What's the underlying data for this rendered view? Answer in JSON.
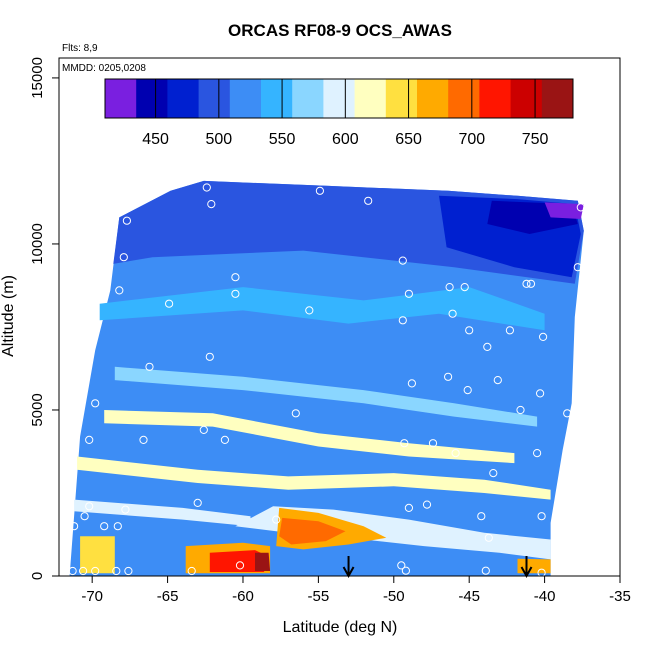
{
  "chart_data": {
    "type": "heatmap",
    "title": "ORCAS RF08-9 OCS_AWAS",
    "annotations": [
      "Flts: 8,9",
      "MMDD: 0205,0208"
    ],
    "xlabel": "Latitude (deg N)",
    "ylabel": "Altitude (m)",
    "xlim": [
      -72.2,
      -35
    ],
    "ylim": [
      0,
      15600
    ],
    "xticks": [
      -70,
      -65,
      -60,
      -55,
      -50,
      -45,
      -40,
      -35
    ],
    "xtick_labels": [
      "-70",
      "-65",
      "-60",
      "-55",
      "-50",
      "-45",
      "-40",
      "-35"
    ],
    "yticks": [
      0,
      5000,
      10000,
      15000
    ],
    "ytick_labels": [
      "0",
      "5000",
      "10000",
      "15000"
    ],
    "colorbar": {
      "range": [
        410,
        780
      ],
      "ticks": [
        450,
        500,
        550,
        600,
        650,
        700,
        750
      ],
      "tick_labels": [
        "450",
        "500",
        "550",
        "600",
        "650",
        "700",
        "750"
      ],
      "colors": [
        "#7a1fe0",
        "#0000b0",
        "#0020d0",
        "#2a55e0",
        "#3d8df5",
        "#35b4ff",
        "#8ad6ff",
        "#dff2ff",
        "#ffffc0",
        "#ffe040",
        "#ffaa00",
        "#ff6a00",
        "#ff1500",
        "#cc0000",
        "#9a1414"
      ]
    },
    "domain_outline": [
      [
        -71.5,
        0
      ],
      [
        -70.8,
        4200
      ],
      [
        -69.8,
        6800
      ],
      [
        -68.8,
        8600
      ],
      [
        -68.2,
        10800
      ],
      [
        -64.8,
        11600
      ],
      [
        -62.6,
        11900
      ],
      [
        -54.5,
        11750
      ],
      [
        -46.4,
        11600
      ],
      [
        -41.8,
        11450
      ],
      [
        -37.8,
        11300
      ],
      [
        -37.4,
        10400
      ],
      [
        -38.0,
        7800
      ],
      [
        -38.2,
        5200
      ],
      [
        -38.8,
        3800
      ],
      [
        -39.6,
        1600
      ],
      [
        -39.6,
        0
      ]
    ],
    "regions": [
      {
        "value": 530,
        "poly": [
          [
            -71.5,
            0
          ],
          [
            -70.8,
            4200
          ],
          [
            -69.8,
            6800
          ],
          [
            -68.8,
            8600
          ],
          [
            -68.2,
            10800
          ],
          [
            -64.8,
            11600
          ],
          [
            -62.6,
            11900
          ],
          [
            -54.5,
            11750
          ],
          [
            -46.4,
            11600
          ],
          [
            -41.8,
            11450
          ],
          [
            -37.8,
            11300
          ],
          [
            -37.4,
            10400
          ],
          [
            -38.0,
            7800
          ],
          [
            -38.2,
            5200
          ],
          [
            -38.8,
            3800
          ],
          [
            -39.6,
            1600
          ],
          [
            -39.6,
            0
          ]
        ]
      },
      {
        "value": 495,
        "poly": [
          [
            -68.2,
            10800
          ],
          [
            -64.8,
            11600
          ],
          [
            -62.6,
            11900
          ],
          [
            -54.5,
            11750
          ],
          [
            -46.4,
            11600
          ],
          [
            -41.8,
            11450
          ],
          [
            -37.8,
            11300
          ],
          [
            -37.4,
            10400
          ],
          [
            -38.0,
            8800
          ],
          [
            -46,
            9300
          ],
          [
            -56,
            9800
          ],
          [
            -66,
            9600
          ],
          [
            -68.6,
            9400
          ]
        ]
      },
      {
        "value": 470,
        "poly": [
          [
            -47.0,
            11450
          ],
          [
            -41.8,
            11350
          ],
          [
            -38.0,
            11200
          ],
          [
            -37.6,
            10300
          ],
          [
            -38.2,
            9000
          ],
          [
            -42,
            9300
          ],
          [
            -46.5,
            9900
          ]
        ]
      },
      {
        "value": 440,
        "poly": [
          [
            -43.5,
            11300
          ],
          [
            -38.2,
            11200
          ],
          [
            -37.8,
            10600
          ],
          [
            -41,
            10300
          ],
          [
            -43.8,
            10600
          ]
        ]
      },
      {
        "value": 420,
        "poly": [
          [
            -40.0,
            11250
          ],
          [
            -37.4,
            11200
          ],
          [
            -37.6,
            10750
          ],
          [
            -39.6,
            10800
          ]
        ]
      },
      {
        "value": 555,
        "poly": [
          [
            -69.5,
            8200
          ],
          [
            -60,
            8700
          ],
          [
            -52,
            8300
          ],
          [
            -45,
            8700
          ],
          [
            -40,
            7900
          ],
          [
            -40,
            7400
          ],
          [
            -47,
            7900
          ],
          [
            -53,
            7600
          ],
          [
            -60,
            8000
          ],
          [
            -69.5,
            7700
          ]
        ]
      },
      {
        "value": 575,
        "poly": [
          [
            -68.5,
            6300
          ],
          [
            -60,
            6000
          ],
          [
            -52,
            5600
          ],
          [
            -46,
            5200
          ],
          [
            -40.5,
            4800
          ],
          [
            -40.5,
            4500
          ],
          [
            -46,
            4800
          ],
          [
            -52,
            5200
          ],
          [
            -60,
            5600
          ],
          [
            -68.5,
            5900
          ]
        ]
      },
      {
        "value": 610,
        "poly": [
          [
            -69.2,
            5000
          ],
          [
            -62,
            4900
          ],
          [
            -55,
            4300
          ],
          [
            -49,
            4000
          ],
          [
            -42,
            3700
          ],
          [
            -42,
            3400
          ],
          [
            -49,
            3600
          ],
          [
            -55,
            3900
          ],
          [
            -62,
            4500
          ],
          [
            -69.2,
            4600
          ]
        ]
      },
      {
        "value": 620,
        "poly": [
          [
            -71,
            3600
          ],
          [
            -63,
            3200
          ],
          [
            -57,
            3000
          ],
          [
            -50,
            3100
          ],
          [
            -44,
            2900
          ],
          [
            -39.6,
            2600
          ],
          [
            -39.6,
            2300
          ],
          [
            -44,
            2500
          ],
          [
            -50,
            2700
          ],
          [
            -57,
            2600
          ],
          [
            -63,
            2800
          ],
          [
            -71,
            3200
          ]
        ]
      },
      {
        "value": 600,
        "poly": [
          [
            -71.2,
            2300
          ],
          [
            -64,
            2050
          ],
          [
            -59.5,
            1800
          ],
          [
            -59.5,
            1500
          ],
          [
            -64,
            1700
          ],
          [
            -71.2,
            1950
          ]
        ]
      },
      {
        "value": 590,
        "poly": [
          [
            -60.5,
            1500
          ],
          [
            -57,
            1300
          ],
          [
            -52,
            1100
          ],
          [
            -48,
            900
          ],
          [
            -43,
            700
          ],
          [
            -39.6,
            500
          ],
          [
            -39.6,
            1100
          ],
          [
            -44,
            1300
          ],
          [
            -49,
            1700
          ],
          [
            -54,
            2000
          ],
          [
            -58,
            2100
          ]
        ]
      },
      {
        "value": 660,
        "poly": [
          [
            -57.6,
            2050
          ],
          [
            -55,
            1900
          ],
          [
            -52,
            1500
          ],
          [
            -50.5,
            1150
          ],
          [
            -53,
            950
          ],
          [
            -56,
            800
          ],
          [
            -57.8,
            900
          ]
        ]
      },
      {
        "value": 690,
        "poly": [
          [
            -57.4,
            1750
          ],
          [
            -55,
            1650
          ],
          [
            -53.2,
            1350
          ],
          [
            -54.5,
            1050
          ],
          [
            -56.8,
            950
          ],
          [
            -57.6,
            1200
          ]
        ]
      },
      {
        "value": 680,
        "poly": [
          [
            -63.8,
            900
          ],
          [
            -60,
            1000
          ],
          [
            -58.2,
            900
          ],
          [
            -58.2,
            80
          ],
          [
            -63.8,
            80
          ]
        ]
      },
      {
        "value": 720,
        "poly": [
          [
            -62.2,
            700
          ],
          [
            -59.2,
            780
          ],
          [
            -58.6,
            650
          ],
          [
            -58.6,
            120
          ],
          [
            -62.2,
            120
          ]
        ]
      },
      {
        "value": 760,
        "poly": [
          [
            -59.2,
            700
          ],
          [
            -58.3,
            700
          ],
          [
            -58.2,
            150
          ],
          [
            -59.2,
            150
          ]
        ]
      },
      {
        "value": 680,
        "poly": [
          [
            -41.8,
            520
          ],
          [
            -39.6,
            500
          ],
          [
            -39.6,
            80
          ],
          [
            -41.8,
            80
          ]
        ]
      },
      {
        "value": 640,
        "poly": [
          [
            -70.8,
            1200
          ],
          [
            -68.5,
            1200
          ],
          [
            -68.5,
            80
          ],
          [
            -70.8,
            80
          ]
        ]
      }
    ],
    "sample_points": [
      [
        -71.3,
        150
      ],
      [
        -70.6,
        150
      ],
      [
        -69.8,
        150
      ],
      [
        -68.4,
        150
      ],
      [
        -67.6,
        150
      ],
      [
        -63.4,
        150
      ],
      [
        -60.2,
        320
      ],
      [
        -49.5,
        320
      ],
      [
        -49.2,
        160
      ],
      [
        -43.9,
        160
      ],
      [
        -40.2,
        100
      ],
      [
        -71.2,
        1500
      ],
      [
        -70.5,
        1800
      ],
      [
        -70.2,
        2100
      ],
      [
        -69.2,
        1500
      ],
      [
        -68.3,
        1500
      ],
      [
        -67.8,
        2000
      ],
      [
        -63,
        2200
      ],
      [
        -57.8,
        1700
      ],
      [
        -49,
        2050
      ],
      [
        -47.8,
        2150
      ],
      [
        -44.2,
        1800
      ],
      [
        -43.7,
        1150
      ],
      [
        -40.2,
        1800
      ],
      [
        -70.2,
        4100
      ],
      [
        -66.6,
        4100
      ],
      [
        -62.6,
        4400
      ],
      [
        -61.2,
        4100
      ],
      [
        -56.5,
        4900
      ],
      [
        -49.3,
        4000
      ],
      [
        -47.4,
        4000
      ],
      [
        -45.9,
        3700
      ],
      [
        -43.4,
        3100
      ],
      [
        -40.5,
        3700
      ],
      [
        -69.8,
        5200
      ],
      [
        -48.8,
        5800
      ],
      [
        -46.4,
        6000
      ],
      [
        -45.1,
        5600
      ],
      [
        -43.1,
        5900
      ],
      [
        -41.6,
        5000
      ],
      [
        -40.3,
        5500
      ],
      [
        -38.5,
        4900
      ],
      [
        -70.4,
        7100
      ],
      [
        -66.2,
        6300
      ],
      [
        -62.2,
        6600
      ],
      [
        -43.8,
        6900
      ],
      [
        -42.3,
        7400
      ],
      [
        -40.1,
        7200
      ],
      [
        -49.4,
        7700
      ],
      [
        -46.1,
        7900
      ],
      [
        -45.0,
        7400
      ],
      [
        -68.2,
        8600
      ],
      [
        -64.9,
        8200
      ],
      [
        -60.5,
        8500
      ],
      [
        -55.6,
        8000
      ],
      [
        -49.0,
        8500
      ],
      [
        -46.3,
        8700
      ],
      [
        -45.3,
        8700
      ],
      [
        -41.2,
        8800
      ],
      [
        -40.9,
        8800
      ],
      [
        -67.9,
        9600
      ],
      [
        -60.5,
        9000
      ],
      [
        -49.4,
        9500
      ],
      [
        -37.8,
        9300
      ],
      [
        -67.7,
        10700
      ],
      [
        -62.1,
        11200
      ],
      [
        -51.7,
        11300
      ],
      [
        -62.4,
        11700
      ],
      [
        -54.9,
        11600
      ],
      [
        -37.6,
        11100
      ]
    ],
    "markers": {
      "type": "down-arrow",
      "x": [
        -53.0,
        -41.2
      ]
    }
  }
}
